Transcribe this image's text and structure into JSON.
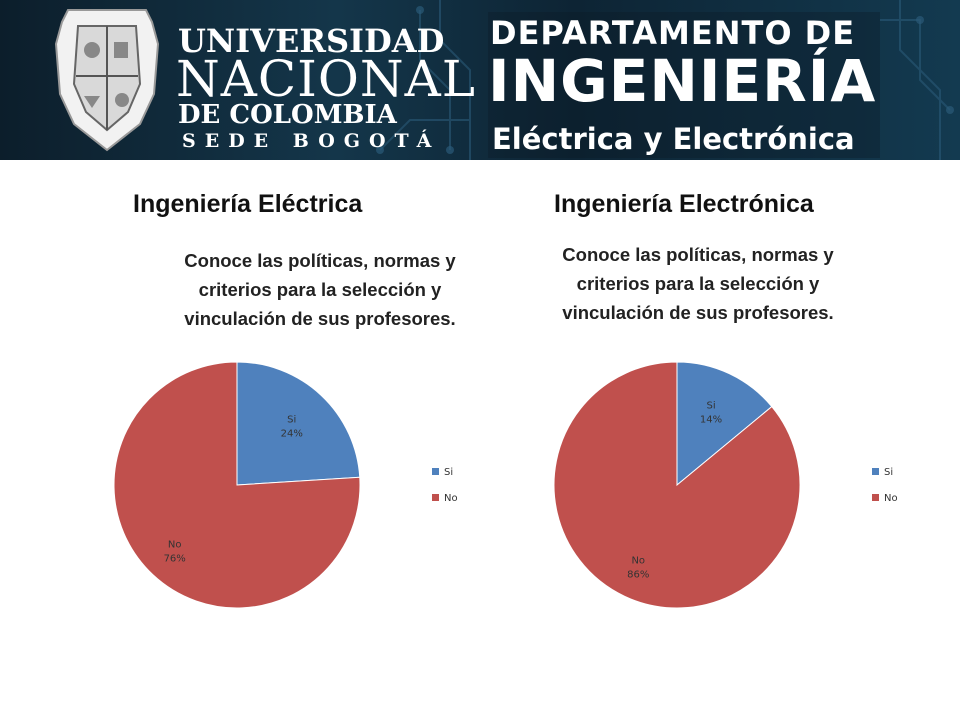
{
  "header": {
    "university": {
      "line1": "UNIVERSIDAD",
      "line2": "NACIONAL",
      "line3": "DE COLOMBIA",
      "line4": "SEDE BOGOTÁ"
    },
    "department": {
      "line1": "DEPARTAMENTO DE",
      "line2": "INGENIERÍA",
      "line3": "Eléctrica y Electrónica"
    },
    "seal_icon": "university-seal-icon"
  },
  "colors": {
    "si": "#4f81bd",
    "no": "#c0504d",
    "banner_dark": "#0c1e2b"
  },
  "chart_data": [
    {
      "type": "pie",
      "heading": "Ingeniería Eléctrica",
      "title": "Conoce las políticas, normas y criterios para la selección y vinculación de sus profesores.",
      "categories": [
        "Si",
        "No"
      ],
      "values": [
        24,
        76
      ],
      "data_labels": [
        [
          "Si",
          "24%"
        ],
        [
          "No",
          "76%"
        ]
      ],
      "legend": [
        "Si",
        "No"
      ],
      "legend_position": "right"
    },
    {
      "type": "pie",
      "heading": "Ingeniería Electrónica",
      "title": "Conoce las políticas, normas y criterios para la selección y vinculación de sus profesores.",
      "categories": [
        "Si",
        "No"
      ],
      "values": [
        14,
        86
      ],
      "data_labels": [
        [
          "Si",
          "14%"
        ],
        [
          "No",
          "86%"
        ]
      ],
      "legend": [
        "Si",
        "No"
      ],
      "legend_position": "right"
    }
  ]
}
